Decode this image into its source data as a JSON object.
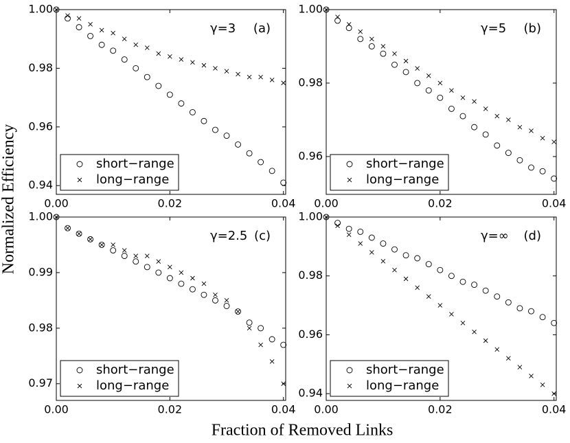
{
  "figure": {
    "xlabel": "Fraction of Removed Links",
    "ylabel": "Normalized Efficiency"
  },
  "chart_data": [
    {
      "type": "scatter",
      "annotation": "γ=3",
      "panel_label": "(a)",
      "x": [
        0,
        0.002,
        0.004,
        0.006,
        0.008,
        0.01,
        0.012,
        0.014,
        0.016,
        0.018,
        0.02,
        0.022,
        0.024,
        0.026,
        0.028,
        0.03,
        0.032,
        0.034,
        0.036,
        0.038,
        0.04
      ],
      "series": [
        {
          "name": "short−range",
          "marker": "circle",
          "color": "#000000",
          "values": [
            1.0,
            0.997,
            0.994,
            0.991,
            0.988,
            0.986,
            0.983,
            0.98,
            0.977,
            0.974,
            0.971,
            0.968,
            0.965,
            0.962,
            0.959,
            0.957,
            0.954,
            0.951,
            0.948,
            0.945,
            0.941
          ]
        },
        {
          "name": "long−range",
          "marker": "x",
          "color": "#000000",
          "values": [
            1.0,
            0.998,
            0.997,
            0.995,
            0.993,
            0.992,
            0.99,
            0.988,
            0.987,
            0.985,
            0.984,
            0.983,
            0.982,
            0.981,
            0.98,
            0.979,
            0.978,
            0.977,
            0.977,
            0.976,
            0.975
          ]
        }
      ],
      "xlim": [
        0,
        0.0404
      ],
      "xticks": [
        {
          "value": 0,
          "label": "0.00"
        },
        0.02,
        0.04
      ],
      "ylim": [
        0.937,
        1.0
      ],
      "yticks": [
        0.94,
        0.96,
        0.98,
        {
          "value": 1,
          "label": "1.00"
        }
      ],
      "legend": "lower left"
    },
    {
      "type": "scatter",
      "annotation": "γ=5",
      "panel_label": "(b)",
      "x": [
        0,
        0.002,
        0.004,
        0.006,
        0.008,
        0.01,
        0.012,
        0.014,
        0.016,
        0.018,
        0.02,
        0.022,
        0.024,
        0.026,
        0.028,
        0.03,
        0.032,
        0.034,
        0.036,
        0.038,
        0.04
      ],
      "series": [
        {
          "name": "short−range",
          "marker": "circle",
          "color": "#000000",
          "values": [
            1.0,
            0.997,
            0.995,
            0.992,
            0.99,
            0.988,
            0.985,
            0.983,
            0.98,
            0.978,
            0.976,
            0.973,
            0.971,
            0.968,
            0.966,
            0.963,
            0.961,
            0.959,
            0.957,
            0.956,
            0.954
          ]
        },
        {
          "name": "long−range",
          "marker": "x",
          "color": "#000000",
          "values": [
            1.0,
            0.998,
            0.996,
            0.994,
            0.992,
            0.99,
            0.988,
            0.986,
            0.984,
            0.982,
            0.98,
            0.978,
            0.976,
            0.975,
            0.973,
            0.971,
            0.97,
            0.968,
            0.967,
            0.965,
            0.964
          ]
        }
      ],
      "xlim": [
        0,
        0.0404
      ],
      "xticks": [
        {
          "value": 0,
          "label": "0.00"
        },
        0.02,
        0.04
      ],
      "ylim": [
        0.9497,
        1.0
      ],
      "yticks": [
        0.96,
        0.98,
        {
          "value": 1,
          "label": "1.00"
        }
      ],
      "legend": "lower left"
    },
    {
      "type": "scatter",
      "annotation": "γ=2.5",
      "panel_label": "(c)",
      "x": [
        0,
        0.002,
        0.004,
        0.006,
        0.008,
        0.01,
        0.012,
        0.014,
        0.016,
        0.018,
        0.02,
        0.022,
        0.024,
        0.026,
        0.028,
        0.03,
        0.032,
        0.034,
        0.036,
        0.038,
        0.04
      ],
      "series": [
        {
          "name": "short−range",
          "marker": "circle",
          "color": "#000000",
          "values": [
            1.0,
            0.998,
            0.997,
            0.996,
            0.995,
            0.994,
            0.993,
            0.992,
            0.991,
            0.99,
            0.989,
            0.988,
            0.987,
            0.986,
            0.985,
            0.984,
            0.983,
            0.981,
            0.98,
            0.978,
            0.977
          ]
        },
        {
          "name": "long−range",
          "marker": "x",
          "color": "#000000",
          "values": [
            1.0,
            0.998,
            0.997,
            0.996,
            0.995,
            0.995,
            0.994,
            0.993,
            0.993,
            0.992,
            0.991,
            0.99,
            0.989,
            0.988,
            0.986,
            0.985,
            0.983,
            0.98,
            0.977,
            0.974,
            0.97
          ]
        }
      ],
      "xlim": [
        0,
        0.0404
      ],
      "xticks": [
        {
          "value": 0,
          "label": "0.00"
        },
        0.02,
        0.04
      ],
      "ylim": [
        0.967,
        1.0
      ],
      "yticks": [
        0.97,
        0.98,
        0.99,
        {
          "value": 1,
          "label": "1.00"
        }
      ],
      "legend": "lower left"
    },
    {
      "type": "scatter",
      "annotation": "γ=∞",
      "panel_label": "(d)",
      "x": [
        0,
        0.002,
        0.004,
        0.006,
        0.008,
        0.01,
        0.012,
        0.014,
        0.016,
        0.018,
        0.02,
        0.022,
        0.024,
        0.026,
        0.028,
        0.03,
        0.032,
        0.034,
        0.036,
        0.038,
        0.04
      ],
      "series": [
        {
          "name": "short−range",
          "marker": "circle",
          "color": "#000000",
          "values": [
            1.0,
            0.998,
            0.996,
            0.995,
            0.993,
            0.991,
            0.989,
            0.987,
            0.986,
            0.984,
            0.982,
            0.98,
            0.978,
            0.977,
            0.975,
            0.973,
            0.971,
            0.969,
            0.968,
            0.966,
            0.964
          ]
        },
        {
          "name": "long−range",
          "marker": "x",
          "color": "#000000",
          "values": [
            1.0,
            0.997,
            0.994,
            0.991,
            0.988,
            0.985,
            0.982,
            0.979,
            0.976,
            0.973,
            0.97,
            0.967,
            0.964,
            0.961,
            0.958,
            0.955,
            0.952,
            0.949,
            0.946,
            0.943,
            0.94
          ]
        }
      ],
      "xlim": [
        0,
        0.0404
      ],
      "xticks": [
        {
          "value": 0,
          "label": "0.00"
        },
        0.02,
        0.04
      ],
      "ylim": [
        0.9377,
        1.0
      ],
      "yticks": [
        0.94,
        0.96,
        0.98,
        {
          "value": 1,
          "label": "1.00"
        }
      ],
      "legend": "lower left"
    }
  ]
}
